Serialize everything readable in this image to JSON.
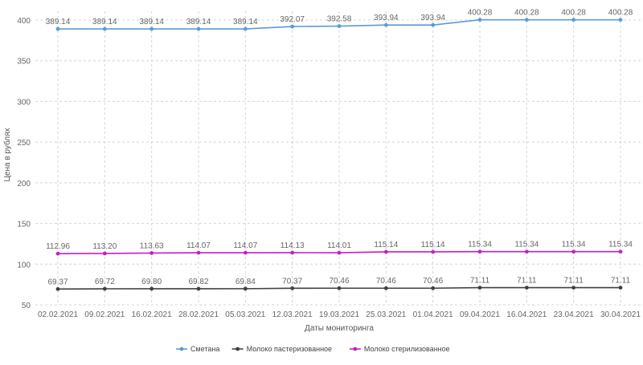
{
  "chart_data": {
    "type": "line",
    "title": "",
    "xlabel": "Даты мониторинга",
    "ylabel": "Цена в рублях",
    "ylim": [
      50,
      400
    ],
    "yticks": [
      50,
      100,
      150,
      200,
      250,
      300,
      350,
      400
    ],
    "grid": true,
    "legend_position": "bottom-center",
    "categories": [
      "02.02.2021",
      "09.02.2021",
      "16.02.2021",
      "28.02.2021",
      "05.03.2021",
      "12.03.2021",
      "19.03.2021",
      "25.03.2021",
      "01.04.2021",
      "09.04.2021",
      "16.04.2021",
      "23.04.2021",
      "30.04.2021"
    ],
    "series": [
      {
        "name": "Сметана",
        "color": "#5b9bd5",
        "values": [
          389.14,
          389.14,
          389.14,
          389.14,
          389.14,
          392.07,
          392.58,
          393.94,
          393.94,
          400.28,
          400.28,
          400.28,
          400.28
        ],
        "labels": [
          "389.14",
          "389.14",
          "389.14",
          "389.14",
          "389.14",
          "392.07",
          "392.58",
          "393.94",
          "393.94",
          "400.28",
          "400.28",
          "400.28",
          "400.28"
        ]
      },
      {
        "name": "Молоко пастеризованное",
        "color": "#404040",
        "values": [
          69.37,
          69.72,
          69.8,
          69.82,
          69.84,
          70.37,
          70.46,
          70.46,
          70.46,
          71.11,
          71.11,
          71.11,
          71.11
        ],
        "labels": [
          "69.37",
          "69.72",
          "69.80",
          "69.82",
          "69.84",
          "70.37",
          "70.46",
          "70.46",
          "70.46",
          "71.11",
          "71.11",
          "71.11",
          "71.11"
        ]
      },
      {
        "name": "Молоко стерилизованное",
        "color": "#c41fc4",
        "values": [
          112.96,
          113.2,
          113.63,
          114.07,
          114.07,
          114.13,
          114.01,
          115.14,
          115.14,
          115.34,
          115.34,
          115.34,
          115.34
        ],
        "labels": [
          "112.96",
          "113.20",
          "113.63",
          "114.07",
          "114.07",
          "114.13",
          "114.01",
          "115.14",
          "115.14",
          "115.34",
          "115.34",
          "115.34",
          "115.34"
        ]
      }
    ]
  }
}
